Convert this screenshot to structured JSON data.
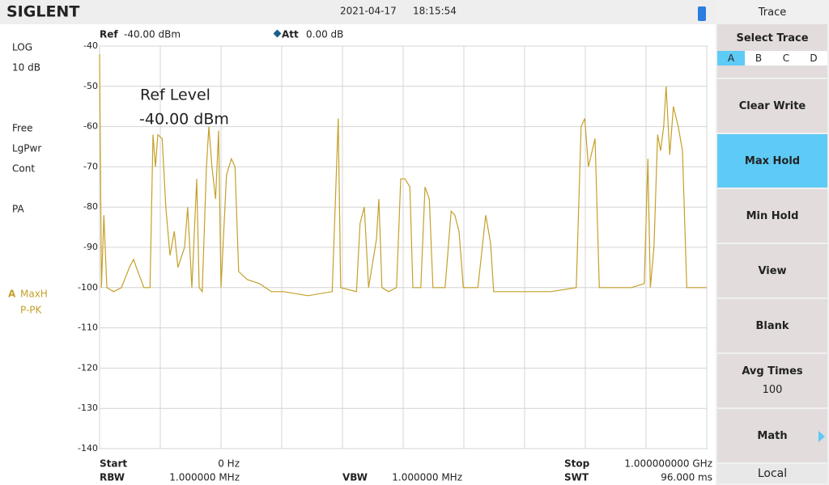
{
  "header": {
    "brand": "SIGLENT",
    "date": "2021-04-17",
    "time": "18:15:54"
  },
  "status": {
    "ref_label": "Ref",
    "ref_value": "-40.00 dBm",
    "att_label": "Att",
    "att_value": "0.00 dB"
  },
  "left_panel": {
    "scale": "LOG",
    "scale_div": "10 dB",
    "trigger": "Free",
    "detector_mode": "LgPwr",
    "sweep": "Cont",
    "preamp": "PA",
    "trace_id": "A",
    "trace_mode": "MaxH",
    "trace_detector": "P-PK"
  },
  "chart_data": {
    "type": "line",
    "annotations": [
      "Ref Level",
      "-40.00 dBm"
    ],
    "x": [
      0,
      3,
      7,
      12,
      23,
      36,
      49,
      56,
      63,
      73,
      83,
      88,
      92,
      96,
      103,
      109,
      116,
      123,
      129,
      140,
      145,
      152,
      160,
      164,
      169,
      176,
      180,
      185,
      191,
      196,
      200,
      209,
      217,
      223,
      229,
      243,
      263,
      283,
      303,
      343,
      383,
      388,
      393,
      397,
      423,
      429,
      436,
      443,
      456,
      460,
      465,
      476,
      489,
      496,
      503,
      511,
      516,
      529,
      536,
      543,
      549,
      569,
      579,
      585,
      592,
      599,
      623,
      636,
      644,
      649,
      689,
      743,
      785,
      793,
      799,
      805,
      816,
      823,
      876,
      897,
      903,
      907,
      913,
      919,
      924,
      929,
      933,
      939,
      945,
      953,
      960,
      967,
      1000
    ],
    "series": [
      {
        "color": "#c4a02a",
        "values": [
          -42,
          -100,
          -82,
          -100,
          -101,
          -100,
          -95,
          -93,
          -96,
          -100,
          -100,
          -62,
          -70,
          -62,
          -63,
          -80,
          -92,
          -86,
          -95,
          -90,
          -80,
          -100,
          -73,
          -100,
          -101,
          -70,
          -60,
          -70,
          -78,
          -61,
          -100,
          -72,
          -68,
          -70,
          -96,
          -98,
          -99,
          -101,
          -101,
          -102,
          -101,
          -80,
          -58,
          -100,
          -101,
          -84,
          -80,
          -100,
          -88,
          -78,
          -100,
          -101,
          -100,
          -73,
          -73,
          -75,
          -100,
          -100,
          -75,
          -78,
          -100,
          -100,
          -81,
          -82,
          -86,
          -100,
          -100,
          -82,
          -89,
          -101,
          -101,
          -101,
          -100,
          -60,
          -58,
          -70,
          -63,
          -100,
          -100,
          -99,
          -68,
          -100,
          -90,
          -62,
          -66,
          -60,
          -50,
          -67,
          -55,
          -60,
          -66,
          -100,
          -100
        ]
      }
    ],
    "xlim": [
      0,
      1000
    ],
    "xticks": [
      0,
      100,
      200,
      300,
      400,
      500,
      600,
      700,
      800,
      900,
      1000
    ],
    "ylim": [
      -140,
      -40
    ],
    "yticks": [
      -40,
      -50,
      -60,
      -70,
      -80,
      -90,
      -100,
      -110,
      -120,
      -130,
      -140
    ],
    "grid": true
  },
  "footer": {
    "start_label": "Start",
    "start_value": "0 Hz",
    "stop_label": "Stop",
    "stop_value": "1.000000000 GHz",
    "rbw_label": "RBW",
    "rbw_value": "1.000000 MHz",
    "vbw_label": "VBW",
    "vbw_value": "1.000000 MHz",
    "swt_label": "SWT",
    "swt_value": "96.000 ms"
  },
  "softkeys": {
    "title": "Trace",
    "select_trace": "Select Trace",
    "traces": [
      "A",
      "B",
      "C",
      "D"
    ],
    "clear_write": "Clear Write",
    "max_hold": "Max Hold",
    "min_hold": "Min Hold",
    "view": "View",
    "blank": "Blank",
    "avg_times": "Avg Times",
    "avg_value": "100",
    "math": "Math",
    "local": "Local"
  }
}
